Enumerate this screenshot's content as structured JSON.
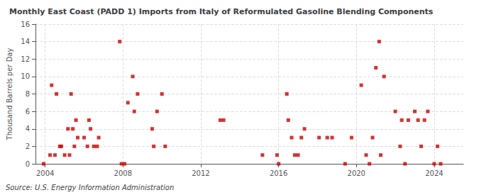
{
  "chart_data": {
    "type": "scatter",
    "title": "Monthly East Coast (PADD 1) Imports from Italy of Reformulated Gasoline Blending Components",
    "ylabel": "Thousand Barrels per Day",
    "annotations": [
      "Source: U.S. Energy Information Administration"
    ],
    "color": "#cc0000",
    "marker": "square",
    "grid": true,
    "xlim": [
      2003.5,
      2025.5
    ],
    "ylim": [
      0,
      16
    ],
    "xticks": [
      2004,
      2008,
      2012,
      2016,
      2020,
      2024
    ],
    "yticks": [
      0,
      2,
      4,
      6,
      8,
      10,
      12,
      14,
      16
    ],
    "x": [
      2003.92,
      2004.25,
      2004.33,
      2004.5,
      2004.58,
      2004.75,
      2004.83,
      2005.0,
      2005.17,
      2005.25,
      2005.33,
      2005.42,
      2005.5,
      2005.58,
      2005.67,
      2006.0,
      2006.17,
      2006.25,
      2006.33,
      2006.5,
      2006.67,
      2006.75,
      2007.83,
      2007.92,
      2008.08,
      2008.25,
      2008.5,
      2008.58,
      2008.75,
      2009.5,
      2009.58,
      2009.75,
      2010.0,
      2010.17,
      2013.0,
      2013.17,
      2015.17,
      2015.92,
      2016.0,
      2016.42,
      2016.5,
      2016.67,
      2016.83,
      2017.0,
      2017.17,
      2017.33,
      2018.08,
      2018.5,
      2018.75,
      2019.42,
      2019.75,
      2020.25,
      2020.5,
      2020.67,
      2020.83,
      2021.0,
      2021.17,
      2021.25,
      2021.42,
      2022.0,
      2022.25,
      2022.33,
      2022.5,
      2022.67,
      2023.0,
      2023.17,
      2023.33,
      2023.5,
      2023.67,
      2024.0,
      2024.17,
      2024.33
    ],
    "values": [
      0,
      1,
      9,
      1,
      8,
      2,
      2,
      1,
      4,
      1,
      8,
      4,
      2,
      5,
      3,
      3,
      2,
      5,
      4,
      2,
      2,
      3,
      14,
      0,
      0,
      7,
      10,
      6,
      8,
      4,
      2,
      6,
      8,
      2,
      5,
      5,
      1,
      1,
      0,
      8,
      5,
      3,
      1,
      1,
      3,
      4,
      3,
      3,
      3,
      0,
      3,
      9,
      1,
      0,
      3,
      11,
      14,
      1,
      10,
      6,
      2,
      5,
      0,
      5,
      6,
      5,
      2,
      5,
      6,
      0,
      2,
      0
    ]
  }
}
